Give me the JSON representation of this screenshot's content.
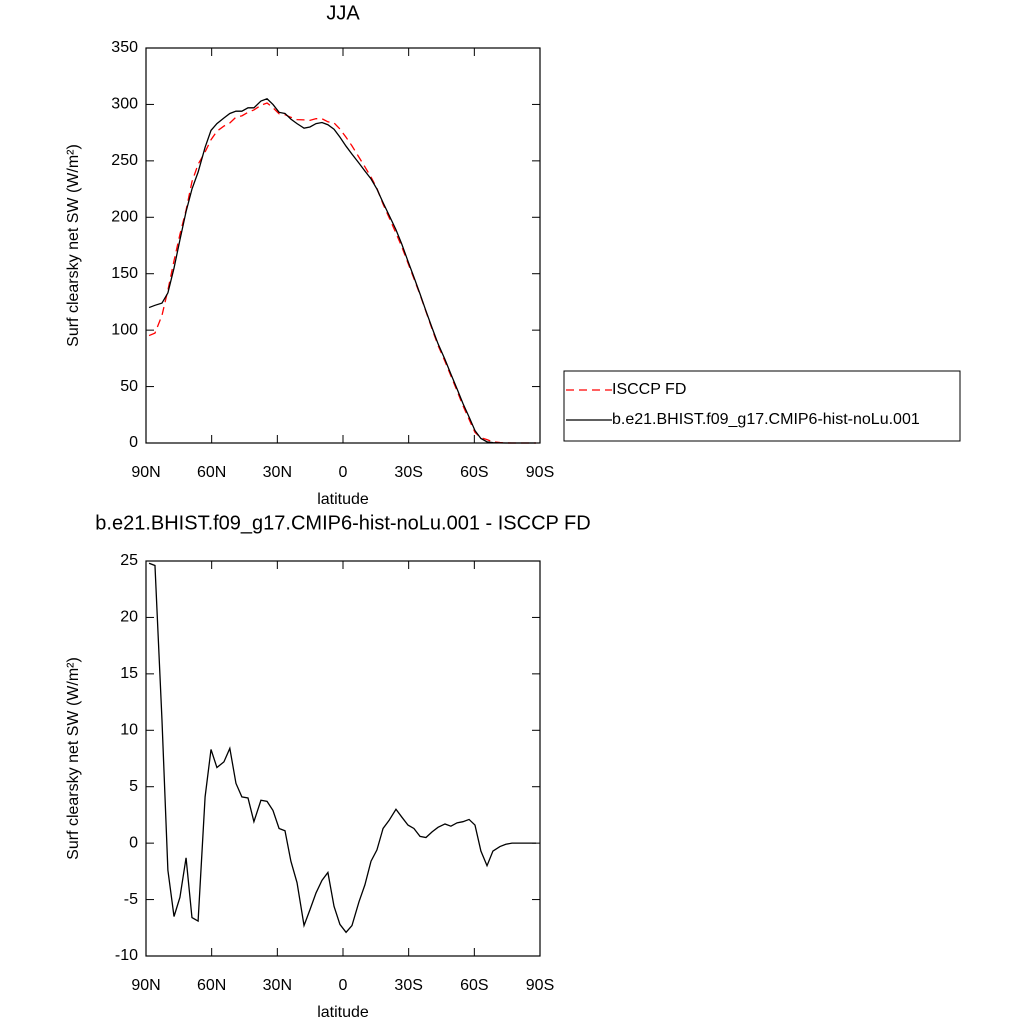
{
  "chart_data": [
    {
      "type": "line",
      "title": "JJA",
      "x_label": "latitude",
      "y_label": "Surf clearsky net SW (W/m²)",
      "x": [
        88.6,
        85.9,
        82.7,
        80,
        77.2,
        74.5,
        71.7,
        69,
        66.2,
        63,
        60.3,
        57.6,
        54.4,
        51.7,
        48.9,
        46.2,
        43.4,
        40.7,
        37.5,
        34.7,
        32,
        29.2,
        26.5,
        23.8,
        21,
        17.8,
        15.1,
        12.3,
        9.6,
        6.9,
        4.1,
        1.4,
        -1.4,
        -4.1,
        -7.3,
        -10,
        -12.8,
        -15.5,
        -18.3,
        -21,
        -24.2,
        -26.9,
        -29.7,
        -32.4,
        -35.2,
        -37.9,
        -40.7,
        -43.4,
        -46.6,
        -49.3,
        -52.1,
        -54.8,
        -57.6,
        -60.3,
        -63,
        -65.8,
        -68.5,
        -71.7,
        -74.4,
        -77.2,
        -79.9,
        -82.7,
        -85.4,
        -88.2
      ],
      "series": [
        {
          "name": "ISCCP FD",
          "color": "#ff0000",
          "dashed": true,
          "values": [
            95.2,
            97.4,
            113.1,
            135.4,
            161.5,
            184.8,
            206.3,
            231.6,
            246.9,
            257.9,
            268.7,
            276.3,
            280.8,
            283.6,
            288.7,
            289.9,
            293,
            295.1,
            299.2,
            301.3,
            297.1,
            291.7,
            290.9,
            288.6,
            286.5,
            286.3,
            285.9,
            287.4,
            287.3,
            284.6,
            283.6,
            278.2,
            270.9,
            263.3,
            253.2,
            244.7,
            235.6,
            225.6,
            211.7,
            200,
            186,
            173.7,
            159.4,
            145.7,
            131.4,
            116.5,
            101,
            86.6,
            72.3,
            59.5,
            46.2,
            33.1,
            20.9,
            9.4,
            4.7,
            3,
            1,
            0.4,
            0.1,
            0,
            0,
            0,
            0,
            0
          ]
        },
        {
          "name": "b.e21.BHIST.f09_g17.CMIP6-hist-noLu.001",
          "color": "#000000",
          "dashed": false,
          "values": [
            120,
            122,
            124,
            133,
            155,
            180,
            205,
            225,
            240,
            262,
            277,
            283,
            288,
            292,
            294,
            294,
            297,
            297,
            303,
            305,
            300,
            293,
            292,
            287,
            283,
            279,
            280,
            283,
            284,
            282,
            278,
            271,
            263,
            256,
            248,
            241,
            234,
            225,
            213,
            202,
            189,
            176,
            161,
            147,
            132,
            117,
            102,
            88,
            74,
            61,
            48,
            35,
            23,
            11,
            4,
            1,
            0.3,
            0.1,
            0,
            0,
            0,
            0,
            0,
            0
          ]
        }
      ],
      "xlim": [
        90,
        -90
      ],
      "xticks": [
        {
          "value": 90,
          "label": "90N"
        },
        {
          "value": 60,
          "label": "60N"
        },
        {
          "value": 30,
          "label": "30N"
        },
        0,
        {
          "value": -30,
          "label": "30S"
        },
        {
          "value": -60,
          "label": "60S"
        },
        {
          "value": -90,
          "label": "90S"
        }
      ],
      "ylim": [
        0,
        350
      ],
      "yticks": [
        0,
        50,
        100,
        150,
        200,
        250,
        300,
        350
      ],
      "legend": "right"
    },
    {
      "type": "line",
      "title": "b.e21.BHIST.f09_g17.CMIP6-hist-noLu.001 - ISCCP FD",
      "x_label": "latitude",
      "y_label": "Surf clearsky net SW (W/m²)",
      "x": [
        88.6,
        85.9,
        82.7,
        80,
        77.2,
        74.5,
        71.7,
        69,
        66.2,
        63,
        60.3,
        57.6,
        54.4,
        51.7,
        48.9,
        46.2,
        43.4,
        40.7,
        37.5,
        34.7,
        32,
        29.2,
        26.5,
        23.8,
        21,
        17.8,
        15.1,
        12.3,
        9.6,
        6.9,
        4.1,
        1.4,
        -1.4,
        -4.1,
        -7.3,
        -10,
        -12.8,
        -15.5,
        -18.3,
        -21,
        -24.2,
        -26.9,
        -29.7,
        -32.4,
        -35.2,
        -37.9,
        -40.7,
        -43.4,
        -46.6,
        -49.3,
        -52.1,
        -54.8,
        -57.6,
        -60.3,
        -63,
        -65.8,
        -68.5,
        -71.7,
        -74.4,
        -77.2,
        -79.9,
        -82.7,
        -85.4,
        -88.2
      ],
      "values": [
        24.8,
        24.6,
        10.9,
        -2.4,
        -6.5,
        -4.8,
        -1.3,
        -6.6,
        -6.9,
        4.1,
        8.3,
        6.7,
        7.2,
        8.4,
        5.3,
        4.1,
        4,
        1.9,
        3.8,
        3.7,
        2.9,
        1.3,
        1.1,
        -1.6,
        -3.5,
        -7.3,
        -5.9,
        -4.4,
        -3.3,
        -2.6,
        -5.6,
        -7.2,
        -7.9,
        -7.3,
        -5.2,
        -3.7,
        -1.6,
        -0.6,
        1.3,
        2,
        3,
        2.3,
        1.6,
        1.3,
        0.6,
        0.5,
        1,
        1.4,
        1.7,
        1.5,
        1.8,
        1.9,
        2.1,
        1.6,
        -0.7,
        -2,
        -0.7,
        -0.3,
        -0.1,
        0,
        0,
        0,
        0,
        0
      ],
      "color": "#000000",
      "xlim": [
        90,
        -90
      ],
      "xticks": [
        {
          "value": 90,
          "label": "90N"
        },
        {
          "value": 60,
          "label": "60N"
        },
        {
          "value": 30,
          "label": "30N"
        },
        0,
        {
          "value": -30,
          "label": "30S"
        },
        {
          "value": -60,
          "label": "60S"
        },
        {
          "value": -90,
          "label": "90S"
        }
      ],
      "ylim": [
        -10,
        25
      ],
      "yticks": [
        -10,
        -5,
        0,
        5,
        10,
        15,
        20,
        25
      ]
    }
  ]
}
